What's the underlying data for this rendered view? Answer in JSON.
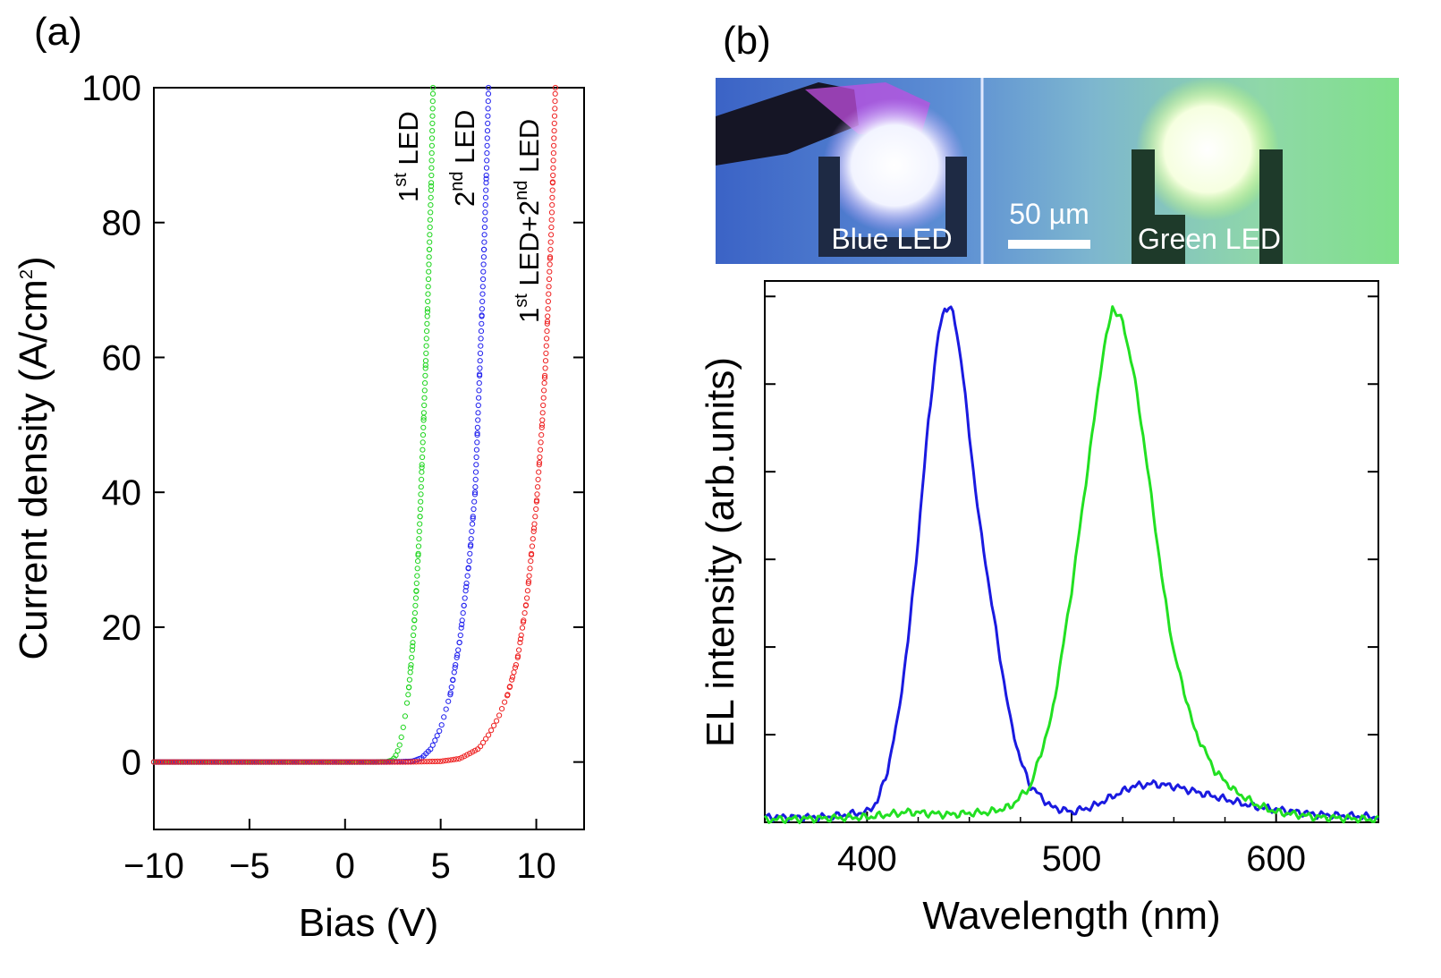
{
  "panel_labels": {
    "a": "(a)",
    "b": "(b)"
  },
  "chart_data": [
    {
      "type": "scatter",
      "panel": "(a)",
      "xlabel": "Bias (V)",
      "ylabel_main": "Current density (A/cm",
      "ylabel_sup": "2",
      "ylabel_tail": ")",
      "xlim": [
        -10,
        12.5
      ],
      "ylim": [
        -10,
        100
      ],
      "xticks": [
        -10,
        -5,
        0,
        5,
        10
      ],
      "xtick_labels": [
        "−10",
        "−5",
        "0",
        "5",
        "10"
      ],
      "yticks": [
        0,
        20,
        40,
        60,
        80,
        100
      ],
      "ytick_labels": [
        "0",
        "20",
        "40",
        "60",
        "80",
        "100"
      ],
      "series": [
        {
          "name": "1st LED",
          "color": "#1fd51f",
          "turn_on_v": 2.5,
          "max_v": 4.6,
          "label_parts": [
            "1",
            "st",
            " LED"
          ],
          "points": [
            [
              -10,
              0
            ],
            [
              -6,
              0
            ],
            [
              -2,
              0
            ],
            [
              0,
              0
            ],
            [
              1.5,
              0
            ],
            [
              2.2,
              0.05
            ],
            [
              2.5,
              0.3
            ],
            [
              2.7,
              1.2
            ],
            [
              2.9,
              3
            ],
            [
              3.1,
              6
            ],
            [
              3.3,
              10
            ],
            [
              3.5,
              16
            ],
            [
              3.7,
              24
            ],
            [
              3.9,
              35
            ],
            [
              4.1,
              50
            ],
            [
              4.3,
              66
            ],
            [
              4.5,
              85
            ],
            [
              4.6,
              100
            ]
          ]
        },
        {
          "name": "2nd LED",
          "color": "#2222ee",
          "turn_on_v": 3.5,
          "max_v": 7.5,
          "label_parts": [
            "2",
            "nd",
            " LED"
          ],
          "points": [
            [
              -10,
              0
            ],
            [
              -6,
              0
            ],
            [
              -2,
              0
            ],
            [
              0,
              0
            ],
            [
              2,
              0
            ],
            [
              3.5,
              0.1
            ],
            [
              4,
              0.6
            ],
            [
              4.5,
              2
            ],
            [
              5,
              5
            ],
            [
              5.5,
              10
            ],
            [
              6,
              18
            ],
            [
              6.5,
              30
            ],
            [
              6.8,
              40
            ],
            [
              7,
              55
            ],
            [
              7.2,
              70
            ],
            [
              7.4,
              88
            ],
            [
              7.5,
              100
            ]
          ]
        },
        {
          "name": "1st LED+2nd LED",
          "color": "#ee2222",
          "turn_on_v": 5.0,
          "max_v": 11.0,
          "label_parts": [
            "1",
            "st",
            " LED+2",
            "nd",
            " LED"
          ],
          "points": [
            [
              -10,
              0
            ],
            [
              -6,
              0
            ],
            [
              -2,
              0
            ],
            [
              0,
              0
            ],
            [
              3,
              0
            ],
            [
              5,
              0.1
            ],
            [
              6,
              0.5
            ],
            [
              7,
              2
            ],
            [
              7.5,
              4
            ],
            [
              8,
              6.5
            ],
            [
              8.5,
              10
            ],
            [
              9,
              15
            ],
            [
              9.5,
              24
            ],
            [
              10,
              38
            ],
            [
              10.3,
              50
            ],
            [
              10.5,
              60
            ],
            [
              10.8,
              80
            ],
            [
              11,
              100
            ]
          ]
        }
      ]
    },
    {
      "type": "line",
      "panel": "(b)",
      "xlabel": "Wavelength (nm)",
      "ylabel": "EL intensity (arb.units)",
      "xlim": [
        350,
        650
      ],
      "ylim": [
        0,
        1.05
      ],
      "xticks": [
        400,
        500,
        600
      ],
      "xtick_labels": [
        "400",
        "500",
        "600"
      ],
      "yticks": [
        0.17,
        0.34,
        0.51,
        0.68,
        0.85,
        1.02
      ],
      "series": [
        {
          "name": "Blue LED",
          "color": "#1a1ae0",
          "points": [
            [
              350,
              0.01
            ],
            [
              380,
              0.01
            ],
            [
              400,
              0.02
            ],
            [
              405,
              0.04
            ],
            [
              410,
              0.1
            ],
            [
              415,
              0.2
            ],
            [
              420,
              0.35
            ],
            [
              425,
              0.55
            ],
            [
              430,
              0.78
            ],
            [
              435,
              0.95
            ],
            [
              438,
              1.0
            ],
            [
              442,
              0.99
            ],
            [
              446,
              0.9
            ],
            [
              450,
              0.75
            ],
            [
              455,
              0.58
            ],
            [
              460,
              0.45
            ],
            [
              465,
              0.32
            ],
            [
              470,
              0.2
            ],
            [
              475,
              0.12
            ],
            [
              480,
              0.07
            ],
            [
              490,
              0.03
            ],
            [
              500,
              0.02
            ],
            [
              510,
              0.03
            ],
            [
              520,
              0.05
            ],
            [
              530,
              0.07
            ],
            [
              540,
              0.075
            ],
            [
              550,
              0.07
            ],
            [
              560,
              0.06
            ],
            [
              570,
              0.05
            ],
            [
              580,
              0.04
            ],
            [
              590,
              0.03
            ],
            [
              600,
              0.025
            ],
            [
              620,
              0.015
            ],
            [
              650,
              0.01
            ]
          ]
        },
        {
          "name": "Green LED",
          "color": "#22e022",
          "points": [
            [
              350,
              0.005
            ],
            [
              400,
              0.01
            ],
            [
              420,
              0.02
            ],
            [
              440,
              0.015
            ],
            [
              460,
              0.02
            ],
            [
              470,
              0.03
            ],
            [
              480,
              0.07
            ],
            [
              490,
              0.2
            ],
            [
              495,
              0.32
            ],
            [
              500,
              0.45
            ],
            [
              505,
              0.6
            ],
            [
              510,
              0.75
            ],
            [
              515,
              0.9
            ],
            [
              520,
              1.0
            ],
            [
              525,
              0.97
            ],
            [
              530,
              0.88
            ],
            [
              535,
              0.75
            ],
            [
              540,
              0.6
            ],
            [
              545,
              0.45
            ],
            [
              550,
              0.33
            ],
            [
              560,
              0.18
            ],
            [
              570,
              0.1
            ],
            [
              580,
              0.06
            ],
            [
              590,
              0.035
            ],
            [
              600,
              0.02
            ],
            [
              620,
              0.01
            ],
            [
              650,
              0.005
            ]
          ]
        }
      ]
    }
  ],
  "photo": {
    "blue_label": "Blue LED",
    "scale_label": "50 µm",
    "green_label": "Green LED"
  }
}
